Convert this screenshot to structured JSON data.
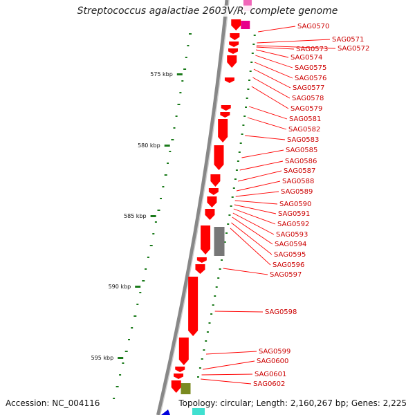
{
  "title": "Streptococcus agalactiae 2603V/R, complete genome",
  "accession": "Accession: NC_004116",
  "topology": "Topology: circular; Length: 2,160,267 bp; Genes: 2,225",
  "scale_labels": [
    "575 kbp",
    "580 kbp",
    "585 kbp",
    "590 kbp",
    "595 kbp"
  ],
  "genes": [
    "SAG0570",
    "SAG0571",
    "SAG0572",
    "SAG0573",
    "SAG0574",
    "SAG0575",
    "SAG0576",
    "SAG0577",
    "SAG0578",
    "SAG0579",
    "SAG0581",
    "SAG0582",
    "SAG0583",
    "SAG0585",
    "SAG0586",
    "SAG0587",
    "SAG0588",
    "SAG0589",
    "SAG0590",
    "SAG0591",
    "SAG0592",
    "SAG0593",
    "SAG0594",
    "SAG0595",
    "SAG0596",
    "SAG0597",
    "SAG0598",
    "SAG0599",
    "SAG0600",
    "SAG0601",
    "SAG0602"
  ],
  "colors": {
    "gene_forward": "#ff0000",
    "gene_label": "#cc0000",
    "backbone": "#888888",
    "gc_tick": "#1a7a1a",
    "pseudo": "#777777",
    "magenta": "#e8008a",
    "olive": "#7a8a20",
    "blue": "#0000dd",
    "cyan": "#40e0d0"
  }
}
